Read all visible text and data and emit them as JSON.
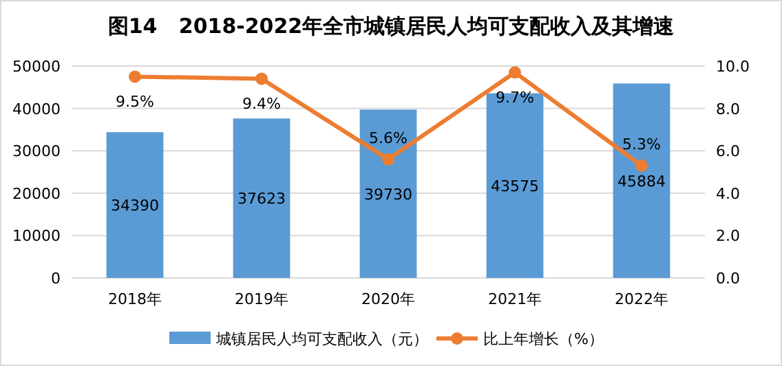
{
  "chart_data": {
    "type": "bar",
    "title": "图14   2018-2022年全市城镇居民人均可支配收入及其增速",
    "categories": [
      "2018年",
      "2019年",
      "2020年",
      "2021年",
      "2022年"
    ],
    "series": [
      {
        "name": "城镇居民人均可支配收入（元）",
        "color": "#5b9bd5",
        "values": [
          34390,
          37623,
          39730,
          43575,
          45884
        ],
        "value_labels": [
          "34390",
          "37623",
          "39730",
          "43575",
          "45884"
        ]
      },
      {
        "name": "比上年增长（%）",
        "type": "line",
        "axis": "y2",
        "color": "#ed7d31",
        "values": [
          9.5,
          9.4,
          5.6,
          9.7,
          5.3
        ],
        "value_labels": [
          "9.5%",
          "9.4%",
          "5.6%",
          "9.7%",
          "5.3%"
        ],
        "marker": "circle"
      }
    ],
    "ylim": [
      0,
      50000
    ],
    "yticks": [
      0,
      10000,
      20000,
      30000,
      40000,
      50000
    ],
    "y2lim": [
      0,
      10
    ],
    "y2ticks": [
      {
        "value": 0,
        "label": "0.0"
      },
      {
        "value": 2,
        "label": "2.0"
      },
      {
        "value": 4,
        "label": "4.0"
      },
      {
        "value": 6,
        "label": "6.0"
      },
      {
        "value": 8,
        "label": "8.0"
      },
      {
        "value": 10,
        "label": "10.0"
      }
    ],
    "grid": "y",
    "legend": "bottom"
  }
}
